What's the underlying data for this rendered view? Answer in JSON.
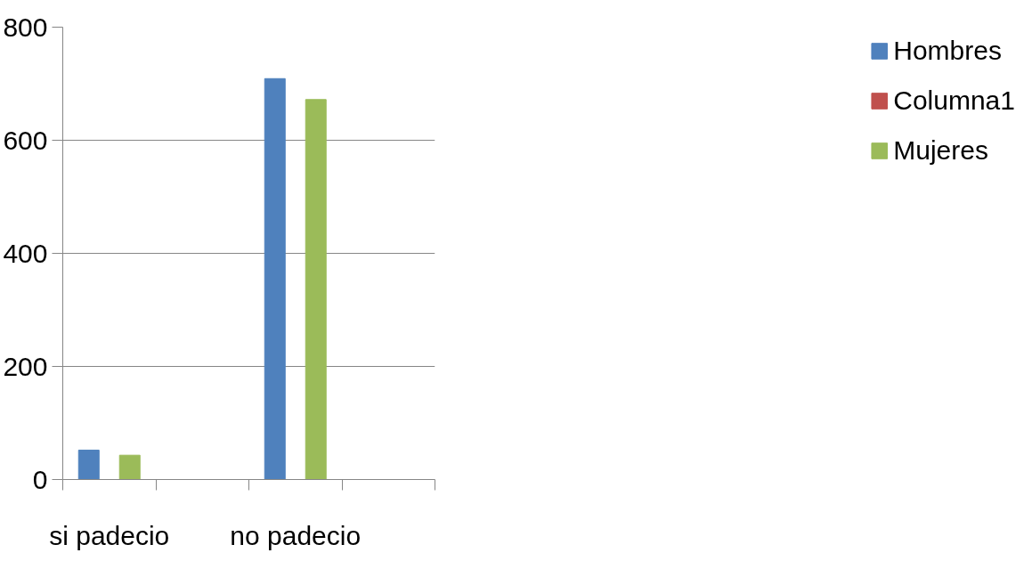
{
  "chart_data": {
    "type": "bar",
    "categories": [
      "si padecio",
      null,
      "no padecio",
      null
    ],
    "series": [
      {
        "name": "Hombres",
        "color": "#4f81bd",
        "values": [
          52,
          null,
          709,
          null
        ]
      },
      {
        "name": "Columna1",
        "color": "#c0504d",
        "values": [
          null,
          null,
          null,
          null
        ]
      },
      {
        "name": "Mujeres",
        "color": "#9bbb59",
        "values": [
          43,
          null,
          672,
          null
        ]
      }
    ],
    "ylim": [
      0,
      800
    ],
    "yticks": [
      0,
      200,
      400,
      600,
      800
    ],
    "grid": "y",
    "legend": "right"
  }
}
